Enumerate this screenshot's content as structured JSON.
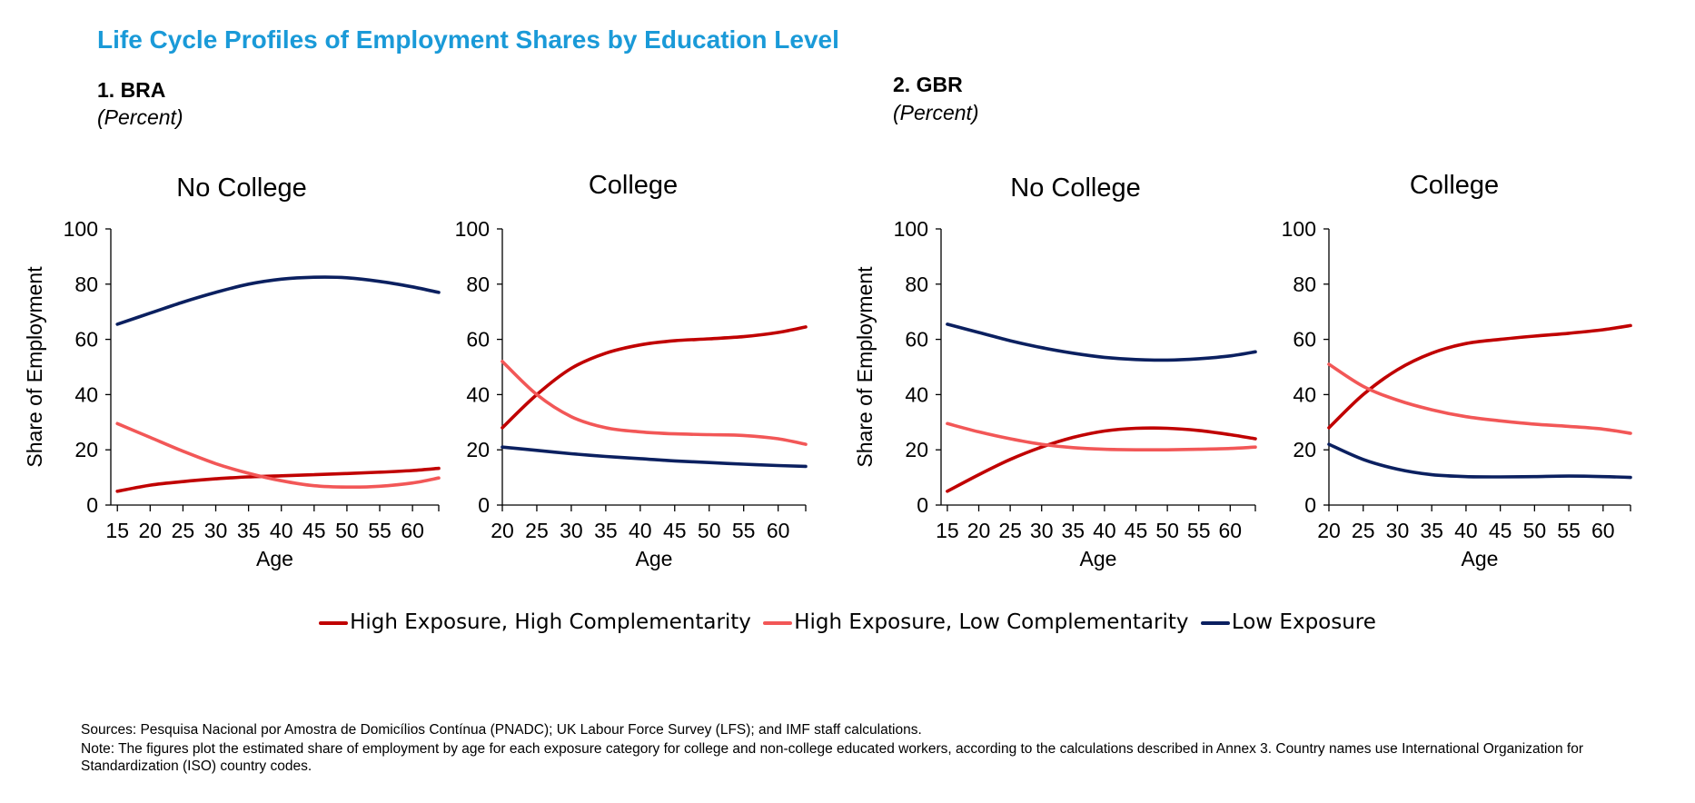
{
  "title": "Life Cycle Profiles of Employment Shares by Education Level",
  "sections": [
    {
      "heading": "1.  BRA",
      "subheading": "(Percent)"
    },
    {
      "heading": "2. GBR",
      "subheading": "(Percent)"
    }
  ],
  "colors": {
    "high_high": "#c00000",
    "high_low": "#f25757",
    "low": "#0b2060",
    "title": "#1a9ad8"
  },
  "legend": [
    {
      "label": "High Exposure, High Complementarity",
      "color": "#c00000"
    },
    {
      "label": "High Exposure, Low Complementarity",
      "color": "#f25757"
    },
    {
      "label": "Low Exposure",
      "color": "#0b2060"
    }
  ],
  "chart_data": [
    {
      "type": "line",
      "country": "BRA",
      "title": "No College",
      "xlabel": "Age",
      "ylabel": "Share of Employment",
      "xlim": [
        14,
        64
      ],
      "ylim": [
        0,
        100
      ],
      "xticks": [
        15,
        20,
        25,
        30,
        35,
        40,
        45,
        50,
        55,
        60
      ],
      "yticks": [
        0,
        20,
        40,
        60,
        80,
        100
      ],
      "x": [
        15,
        20,
        25,
        30,
        35,
        40,
        45,
        50,
        55,
        60,
        64
      ],
      "series": [
        {
          "name": "High Exposure, High Complementarity",
          "values": [
            5,
            7.2,
            8.5,
            9.5,
            10.2,
            10.6,
            11,
            11.4,
            11.9,
            12.5,
            13.3
          ]
        },
        {
          "name": "High Exposure, Low Complementarity",
          "values": [
            29.5,
            24.5,
            19.5,
            15,
            11.5,
            8.8,
            7,
            6.5,
            6.8,
            8,
            9.8
          ]
        },
        {
          "name": "Low Exposure",
          "values": [
            65.5,
            69.5,
            73.5,
            77,
            80,
            81.8,
            82.5,
            82.3,
            81,
            79,
            77
          ]
        }
      ]
    },
    {
      "type": "line",
      "country": "BRA",
      "title": "College",
      "xlabel": "Age",
      "ylabel": "",
      "xlim": [
        20,
        64
      ],
      "ylim": [
        0,
        100
      ],
      "xticks": [
        20,
        25,
        30,
        35,
        40,
        45,
        50,
        55,
        60
      ],
      "yticks": [
        0,
        20,
        40,
        60,
        80,
        100
      ],
      "x": [
        20,
        25,
        30,
        35,
        40,
        45,
        50,
        55,
        60,
        64
      ],
      "series": [
        {
          "name": "High Exposure, High Complementarity",
          "values": [
            28,
            40,
            49.5,
            55,
            58,
            59.5,
            60.2,
            61,
            62.5,
            64.5
          ]
        },
        {
          "name": "High Exposure, Low Complementarity",
          "values": [
            52,
            40,
            32,
            28,
            26.5,
            25.8,
            25.5,
            25.2,
            24,
            22
          ]
        },
        {
          "name": "Low Exposure",
          "values": [
            21,
            19.8,
            18.6,
            17.6,
            16.8,
            16,
            15.4,
            14.8,
            14.3,
            14
          ]
        }
      ]
    },
    {
      "type": "line",
      "country": "GBR",
      "title": "No College",
      "xlabel": "Age",
      "ylabel": "Share of Employment",
      "xlim": [
        14,
        64
      ],
      "ylim": [
        0,
        100
      ],
      "xticks": [
        15,
        20,
        25,
        30,
        35,
        40,
        45,
        50,
        55,
        60
      ],
      "yticks": [
        0,
        20,
        40,
        60,
        80,
        100
      ],
      "x": [
        15,
        20,
        25,
        30,
        35,
        40,
        45,
        50,
        55,
        60,
        64
      ],
      "series": [
        {
          "name": "High Exposure, High Complementarity",
          "values": [
            5,
            11,
            16.5,
            21,
            24.5,
            26.8,
            27.8,
            27.8,
            27,
            25.5,
            24
          ]
        },
        {
          "name": "High Exposure, Low Complementarity",
          "values": [
            29.5,
            26.5,
            24,
            22,
            20.8,
            20.2,
            20,
            20,
            20.2,
            20.5,
            21
          ]
        },
        {
          "name": "Low Exposure",
          "values": [
            65.5,
            62.5,
            59.5,
            57,
            55,
            53.5,
            52.7,
            52.5,
            53,
            54,
            55.5
          ]
        }
      ]
    },
    {
      "type": "line",
      "country": "GBR",
      "title": "College",
      "xlabel": "Age",
      "ylabel": "",
      "xlim": [
        20,
        64
      ],
      "ylim": [
        0,
        100
      ],
      "xticks": [
        20,
        25,
        30,
        35,
        40,
        45,
        50,
        55,
        60
      ],
      "yticks": [
        0,
        20,
        40,
        60,
        80,
        100
      ],
      "x": [
        20,
        25,
        30,
        35,
        40,
        45,
        50,
        55,
        60,
        64
      ],
      "series": [
        {
          "name": "High Exposure, High Complementarity",
          "values": [
            28,
            40,
            49,
            55,
            58.5,
            60,
            61.2,
            62.2,
            63.5,
            65
          ]
        },
        {
          "name": "High Exposure, Low Complementarity",
          "values": [
            51,
            43,
            38,
            34.5,
            32,
            30.5,
            29.3,
            28.5,
            27.5,
            26
          ]
        },
        {
          "name": "Low Exposure",
          "values": [
            22,
            16.5,
            13,
            11,
            10.3,
            10.2,
            10.3,
            10.5,
            10.3,
            10
          ]
        }
      ]
    }
  ],
  "footnotes": {
    "sources": "Sources: Pesquisa Nacional por Amostra de Domicílios Contínua (PNADC); UK Labour Force Survey (LFS); and IMF staff calculations.",
    "note": "Note: The figures plot the estimated share of employment by age for each exposure category for college and non-college educated workers, according to the calculations described in Annex 3. Country names use International Organization for Standardization (ISO) country codes."
  }
}
